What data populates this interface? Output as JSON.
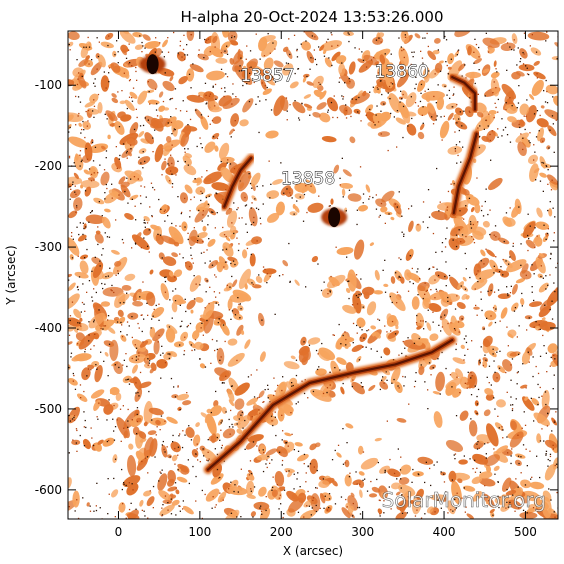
{
  "chart_data": {
    "type": "heatmap",
    "title": "H-alpha 20-Oct-2024 13:53:26.000",
    "xlabel": "X (arcsec)",
    "ylabel": "Y (arcsec)",
    "xlim": [
      -62,
      540
    ],
    "ylim": [
      -636,
      -33
    ],
    "xticks": [
      0,
      100,
      200,
      300,
      400,
      500
    ],
    "yticks": [
      -100,
      -200,
      -300,
      -400,
      -500,
      -600
    ],
    "colormap": [
      "#ffffff",
      "#f7a35c",
      "#e0712c",
      "#b4410e",
      "#5a1402",
      "#1a0500"
    ],
    "regions": [
      {
        "label": "13857",
        "x": 183,
        "y": -95
      },
      {
        "label": "13860",
        "x": 348,
        "y": -90
      },
      {
        "label": "13858",
        "x": 233,
        "y": -222
      }
    ],
    "filaments": [
      {
        "name": "south",
        "points": [
          [
            110,
            -575
          ],
          [
            150,
            -540
          ],
          [
            190,
            -495
          ],
          [
            235,
            -468
          ],
          [
            290,
            -455
          ],
          [
            340,
            -445
          ],
          [
            385,
            -430
          ],
          [
            410,
            -415
          ]
        ]
      },
      {
        "name": "north-east",
        "points": [
          [
            410,
            -90
          ],
          [
            425,
            -97
          ],
          [
            438,
            -110
          ],
          [
            438,
            -130
          ]
        ]
      },
      {
        "name": "east-arc",
        "points": [
          [
            440,
            -160
          ],
          [
            432,
            -190
          ],
          [
            418,
            -225
          ],
          [
            412,
            -258
          ]
        ]
      },
      {
        "name": "west-arc",
        "points": [
          [
            130,
            -250
          ],
          [
            140,
            -225
          ],
          [
            150,
            -205
          ],
          [
            163,
            -190
          ]
        ]
      }
    ],
    "spots": [
      {
        "x": 265,
        "y": -263
      },
      {
        "x": 42,
        "y": -74
      }
    ]
  },
  "watermark": "SolarMonitor.org"
}
